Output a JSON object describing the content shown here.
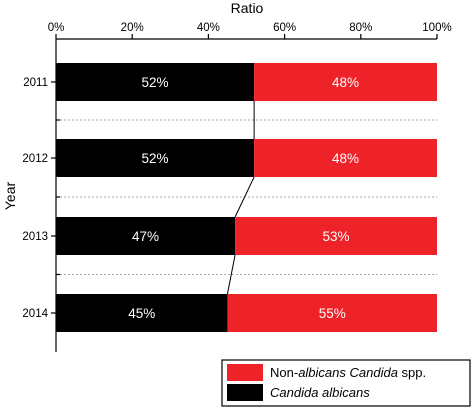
{
  "chart_data": {
    "type": "bar",
    "orientation": "horizontal",
    "stacked": true,
    "percent_stacked": true,
    "xlabel": "Ratio",
    "ylabel": "Year",
    "xlim": [
      0,
      100
    ],
    "x_ticks": [
      "0%",
      "20%",
      "40%",
      "60%",
      "80%",
      "100%"
    ],
    "x_axis_position": "top",
    "categories": [
      "2011",
      "2012",
      "2013",
      "2014"
    ],
    "series": [
      {
        "name": "Candida albicans",
        "color": "#000000",
        "values": [
          52,
          52,
          47,
          45
        ],
        "labels": [
          "52%",
          "52%",
          "47%",
          "45%"
        ]
      },
      {
        "name": "Non-albicans Candida spp.",
        "color": "#ee2229",
        "values": [
          48,
          48,
          53,
          55
        ],
        "labels": [
          "48%",
          "48%",
          "53%",
          "55%"
        ]
      }
    ],
    "legend": {
      "placement": "bottom-right",
      "entries": [
        {
          "parts": [
            {
              "text": "Non-",
              "italic": false
            },
            {
              "text": "albicans Candida",
              "italic": true
            },
            {
              "text": " spp.",
              "italic": false
            }
          ],
          "color": "#ee2229"
        },
        {
          "parts": [
            {
              "text": "Candida albicans",
              "italic": true
            }
          ],
          "color": "#000000"
        }
      ]
    },
    "series_lines": true,
    "grid": false,
    "category_separators": "dotted"
  }
}
